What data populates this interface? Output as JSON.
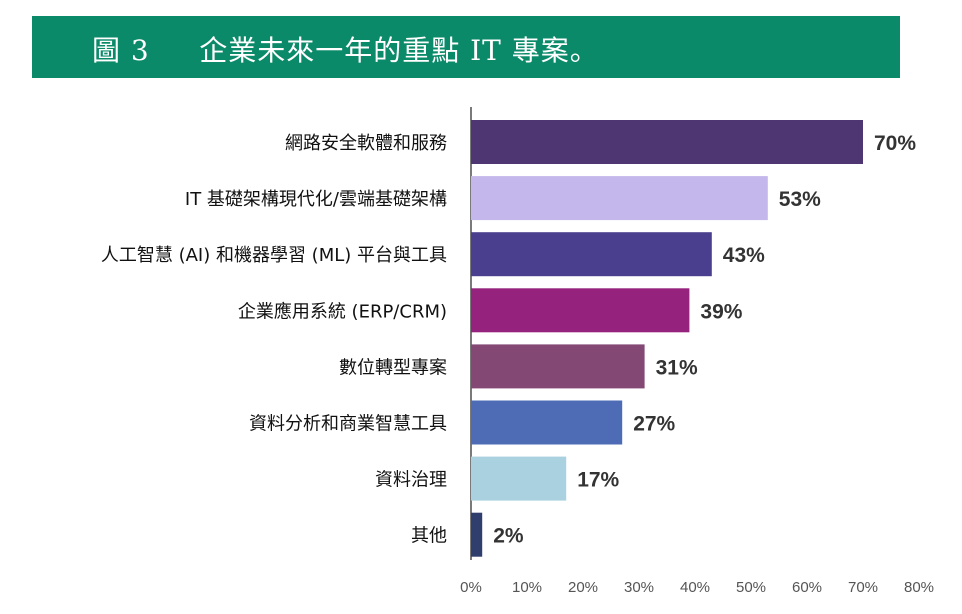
{
  "title": "圖 3     企業未來一年的重點 IT 專案。",
  "colors": {
    "banner_bg": "#0b8a6a",
    "bars": [
      "#4e3672",
      "#c4b7eb",
      "#4a3f8e",
      "#95227c",
      "#834874",
      "#4d6cb5",
      "#a9d1e0",
      "#2f3e6d"
    ]
  },
  "chart_data": {
    "type": "bar",
    "orientation": "horizontal",
    "categories": [
      "網路安全軟體和服務",
      "IT 基礎架構現代化/雲端基礎架構",
      "人工智慧 (AI) 和機器學習 (ML) 平台與工具",
      "企業應用系統 (ERP/CRM)",
      "數位轉型專案",
      "資料分析和商業智慧工具",
      "資料治理",
      "其他"
    ],
    "values": [
      70,
      53,
      43,
      39,
      31,
      27,
      17,
      2
    ],
    "value_labels": [
      "70%",
      "53%",
      "43%",
      "39%",
      "31%",
      "27%",
      "17%",
      "2%"
    ],
    "xlim": [
      0,
      80
    ],
    "xticks": [
      "0%",
      "10%",
      "20%",
      "30%",
      "40%",
      "50%",
      "60%",
      "70%",
      "80%"
    ],
    "grid": false,
    "legend": "none"
  }
}
